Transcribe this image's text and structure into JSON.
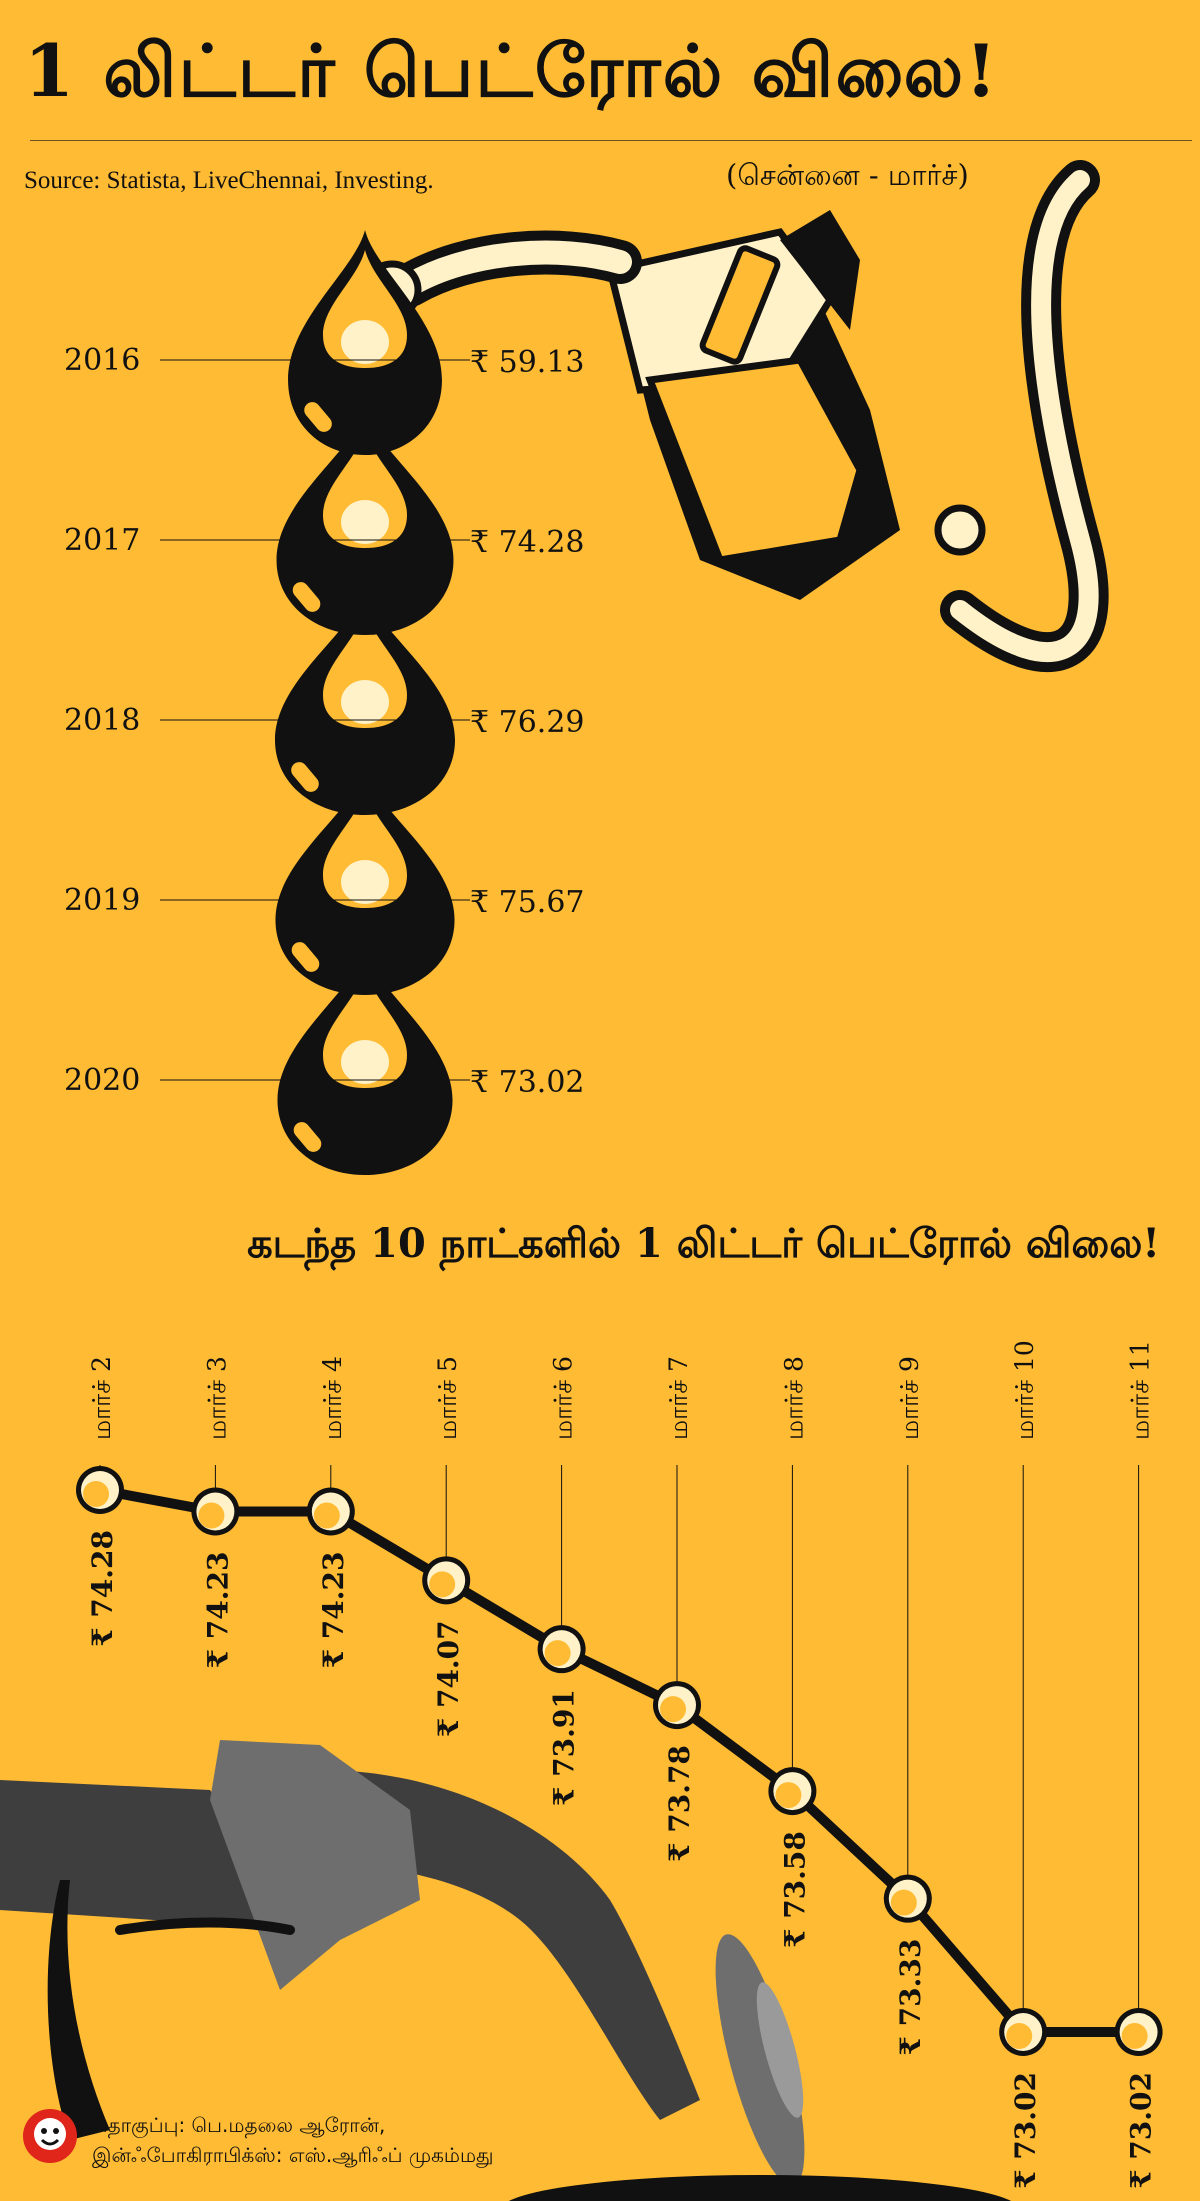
{
  "header": {
    "title": "1 லிட்டர் பெட்ரோல் விலை!",
    "source": "Source: Statista, LiveChennai, Investing.",
    "subtitle": "(சென்னை - மார்ச்)"
  },
  "colors": {
    "background": "#FFBB33",
    "ink": "#111111",
    "cream": "#FFF2C8",
    "grey_nozzle": "#6E6E6E",
    "dark_grey": "#3E3E3E"
  },
  "chart_data": [
    {
      "type": "bar",
      "categories": [
        "2016",
        "2017",
        "2018",
        "2019",
        "2020"
      ],
      "values": [
        59.13,
        74.28,
        76.29,
        75.67,
        73.02
      ],
      "value_labels": [
        "₹ 59.13",
        "₹ 74.28",
        "₹ 76.29",
        "₹ 75.67",
        "₹ 73.02"
      ],
      "title": "1 லிட்டர் பெட்ரோல் விலை!"
    },
    {
      "type": "line",
      "title": "கடந்த 10 நாட்களில் 1 லிட்டர் பெட்ரோல் விலை!",
      "categories": [
        "மார்ச் 2",
        "மார்ச் 3",
        "மார்ச் 4",
        "மார்ச் 5",
        "மார்ச் 6",
        "மார்ச் 7",
        "மார்ச் 8",
        "மார்ச் 9",
        "மார்ச் 10",
        "மார்ச் 11"
      ],
      "values": [
        74.28,
        74.23,
        74.23,
        74.07,
        73.91,
        73.78,
        73.58,
        73.33,
        73.02,
        73.02
      ],
      "value_labels": [
        "₹ 74.28",
        "₹ 74.23",
        "₹ 74.23",
        "₹ 74.07",
        "₹ 73.91",
        "₹ 73.78",
        "₹ 73.58",
        "₹ 73.33",
        "₹ 73.02",
        "₹ 73.02"
      ]
    }
  ],
  "credits": {
    "line1": "தொகுப்பு: பெ.மதலை ஆரோன்,",
    "line2": "இன்ஃபோகிராபிக்ஸ்: எஸ்.ஆரிஃப் முகம்மது"
  }
}
